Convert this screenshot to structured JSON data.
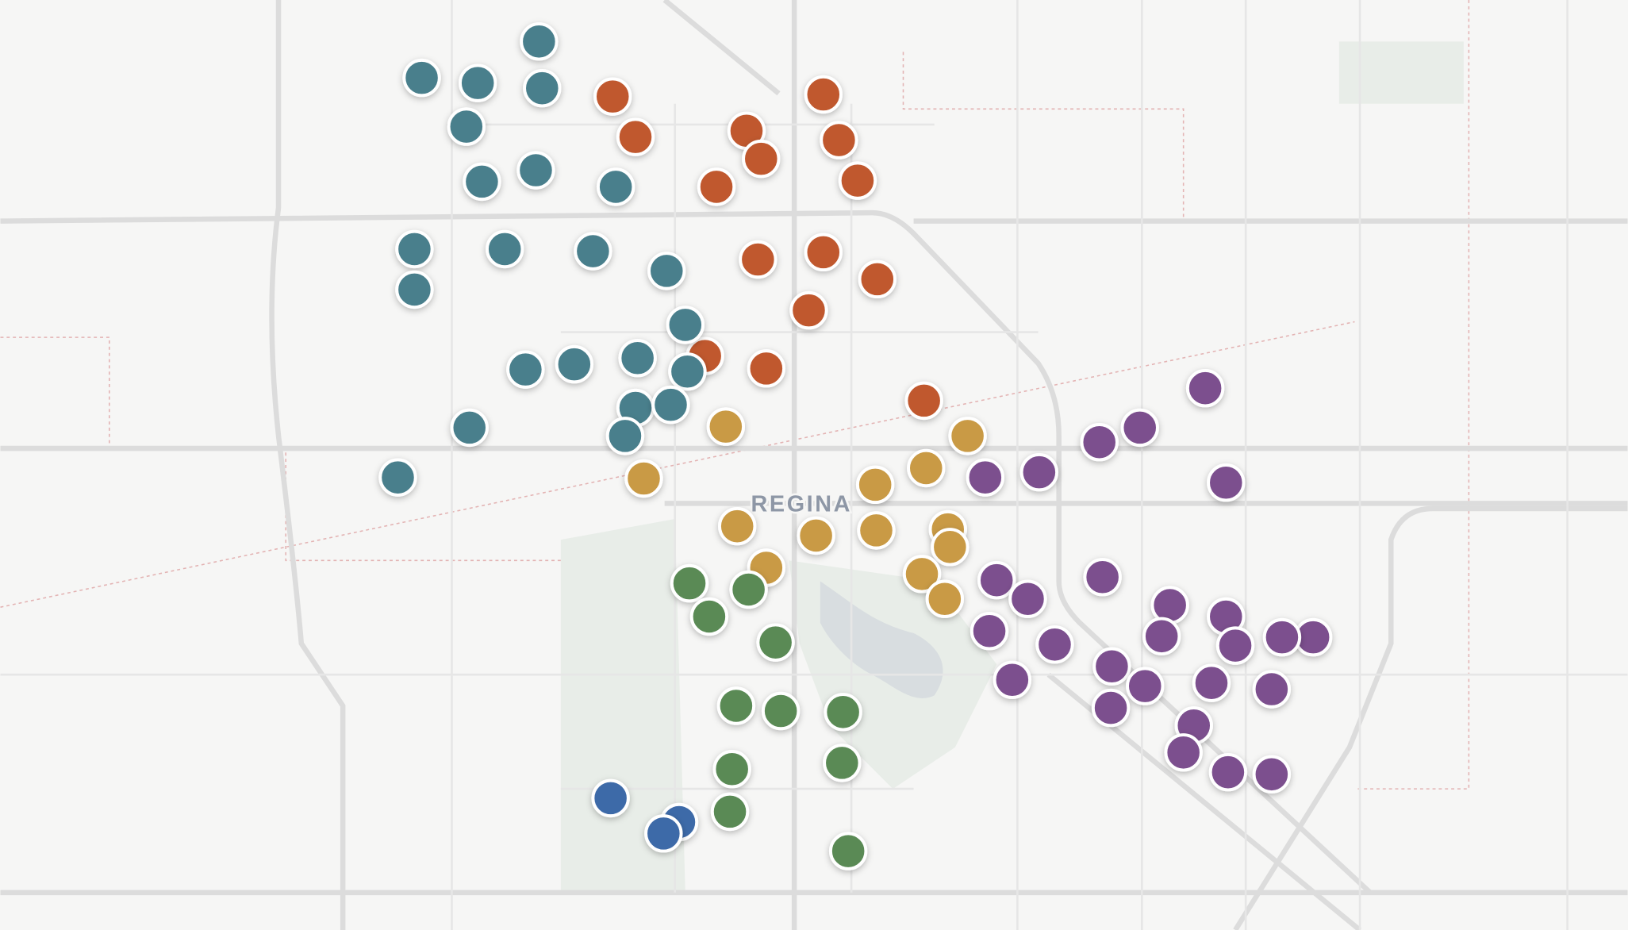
{
  "map": {
    "label": "REGINA"
  }
}
